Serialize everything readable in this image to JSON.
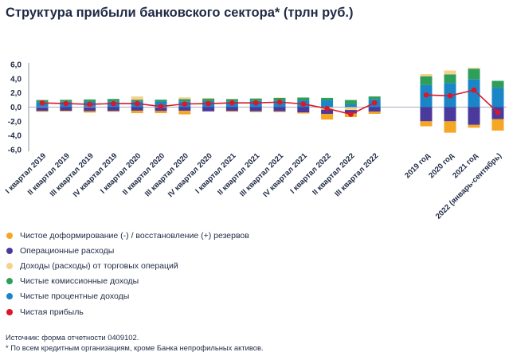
{
  "title": "Структура прибыли банковского сектора* (трлн руб.)",
  "legend_items": [
    {
      "label": "Чистое доформирование (-) / восстановление (+) резервов",
      "color": "#f5a623",
      "icon": "circle-dot"
    },
    {
      "label": "Операционные расходы",
      "color": "#4b3a9c",
      "icon": "circle-dot"
    },
    {
      "label": "Доходы (расходы) от торговых операций",
      "color": "#f7d08a",
      "icon": "circle-dot"
    },
    {
      "label": "Чистые комиссионные доходы",
      "color": "#2e9e5b",
      "icon": "circle-dot"
    },
    {
      "label": "Чистые процентные доходы",
      "color": "#1a86c8",
      "icon": "circle-dot"
    },
    {
      "label": "Чистая прибыль",
      "color": "#d8182b",
      "icon": "circle-dot"
    }
  ],
  "source_note": "Источник: форма отчетности 0409102.",
  "footnote": "* По всем кредитным организациям, кроме Банка непрофильных активов.",
  "chart_data": {
    "type": "bar",
    "stacked": true,
    "categories": [
      "I квартал 2019",
      "II квартал 2019",
      "III квартал 2019",
      "IV квартал 2019",
      "I квартал 2020",
      "II квартал 2020",
      "III квартал 2020",
      "IV квартал 2020",
      "I квартал 2021",
      "II квартал 2021",
      "III квартал 2021",
      "IV квартал 2021",
      "I квартал 2022",
      "II квартал 2022",
      "III квартал 2022",
      "2019 год",
      "2020 год",
      "2021 год",
      "2022 (январь-сентябрь)"
    ],
    "groups": [
      15,
      4
    ],
    "ylim": [
      -6,
      6
    ],
    "yticks": [
      "6,0",
      "4,0",
      "2,0",
      "0,0",
      "-2,0",
      "-4,0",
      "-6,0"
    ],
    "grid": false,
    "series": [
      {
        "name": "Чистые процентные доходы",
        "color": "#1a86c8",
        "values": [
          0.7,
          0.75,
          0.78,
          0.8,
          0.8,
          0.78,
          0.82,
          0.85,
          0.82,
          0.88,
          0.92,
          0.95,
          0.95,
          0.4,
          1.1,
          3.1,
          3.4,
          3.9,
          2.7
        ]
      },
      {
        "name": "Чистые комиссионные доходы",
        "color": "#2e9e5b",
        "values": [
          0.3,
          0.28,
          0.3,
          0.35,
          0.25,
          0.27,
          0.3,
          0.35,
          0.3,
          0.33,
          0.37,
          0.4,
          0.35,
          0.6,
          0.4,
          1.25,
          1.2,
          1.5,
          1.0
        ]
      },
      {
        "name": "Доходы (расходы) от торговых операций",
        "color": "#f7d08a",
        "values": [
          -0.05,
          0.0,
          -0.05,
          0.0,
          0.45,
          -0.05,
          0.25,
          0.1,
          0.05,
          0.05,
          0.05,
          0.0,
          -0.35,
          -0.4,
          0.0,
          0.3,
          0.55,
          0.15,
          0.0
        ]
      },
      {
        "name": "Операционные расходы",
        "color": "#4b3a9c",
        "values": [
          -0.5,
          -0.52,
          -0.52,
          -0.55,
          -0.5,
          -0.5,
          -0.52,
          -0.6,
          -0.55,
          -0.6,
          -0.6,
          -0.75,
          -0.6,
          -0.5,
          -0.65,
          -2.0,
          -2.0,
          -2.5,
          -1.7
        ]
      },
      {
        "name": "Чистое доформирование (-) / восстановление (+) резервов",
        "color": "#f5a623",
        "values": [
          -0.1,
          -0.1,
          -0.2,
          -0.1,
          -0.35,
          -0.3,
          -0.5,
          0.0,
          -0.1,
          -0.1,
          -0.1,
          -0.15,
          -0.8,
          -0.5,
          -0.3,
          -0.7,
          -1.6,
          -0.4,
          -1.6
        ]
      },
      {
        "name": "Чистая прибыль",
        "color": "#d8182b",
        "type": "line",
        "values": [
          0.6,
          0.5,
          0.4,
          0.5,
          0.5,
          0.1,
          0.45,
          0.5,
          0.6,
          0.6,
          0.7,
          0.45,
          -0.2,
          -1.0,
          0.6,
          1.7,
          1.6,
          2.4,
          -0.75
        ]
      }
    ]
  }
}
